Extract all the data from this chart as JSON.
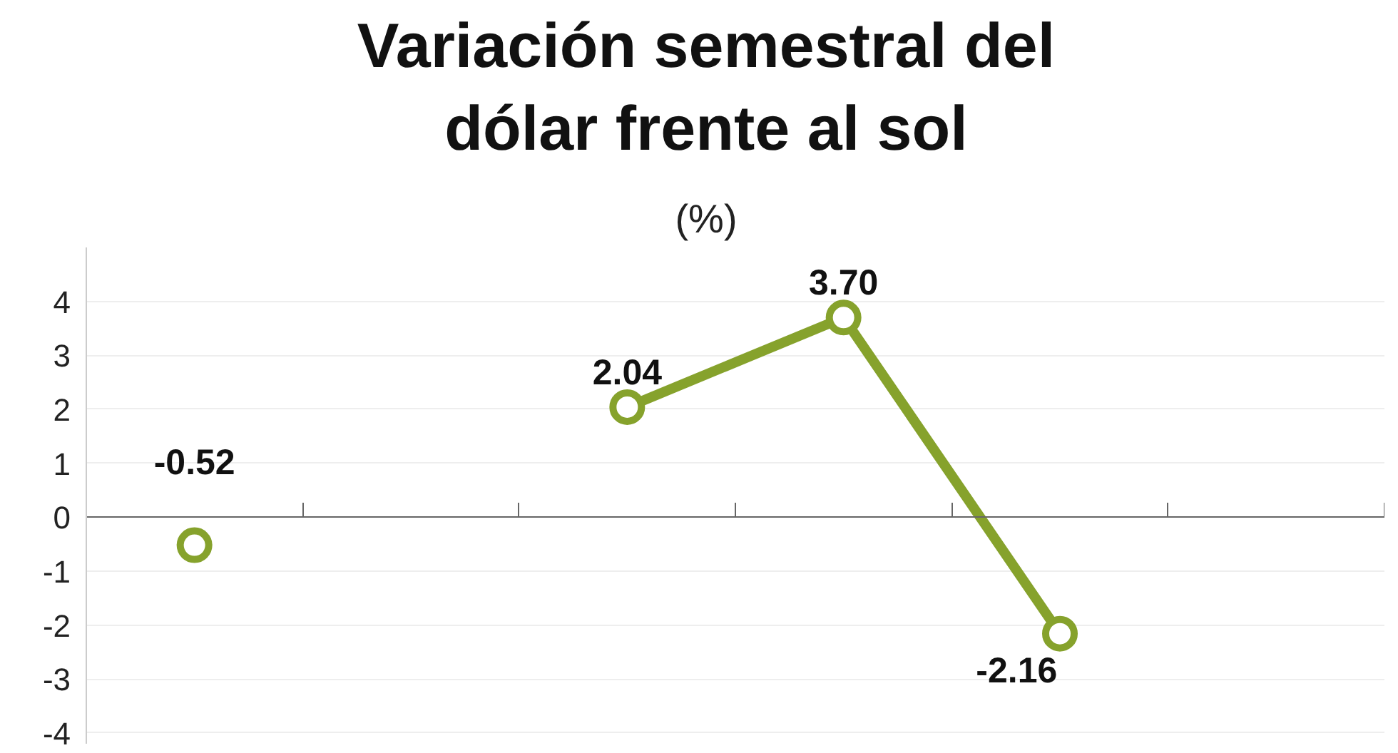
{
  "chart_data": {
    "type": "line",
    "title": "Variación semestral del dólar frente al sol",
    "subtitle": "(%)",
    "categories": [
      null,
      null,
      null,
      null,
      null,
      null
    ],
    "series": [
      {
        "color": "#86a22c",
        "values": [
          -0.52,
          null,
          2.04,
          3.7,
          -2.16,
          null
        ],
        "value_labels": [
          "-0.52",
          null,
          "2.04",
          "3.70",
          "-2.16",
          null
        ]
      }
    ],
    "ylim": [
      -4.2,
      5
    ],
    "yticks": [
      -4,
      -3,
      -2,
      -1,
      0,
      1,
      2,
      3,
      4
    ],
    "grid": "y",
    "marker": "circle",
    "line_style": "solid",
    "tick_labels": "y"
  }
}
